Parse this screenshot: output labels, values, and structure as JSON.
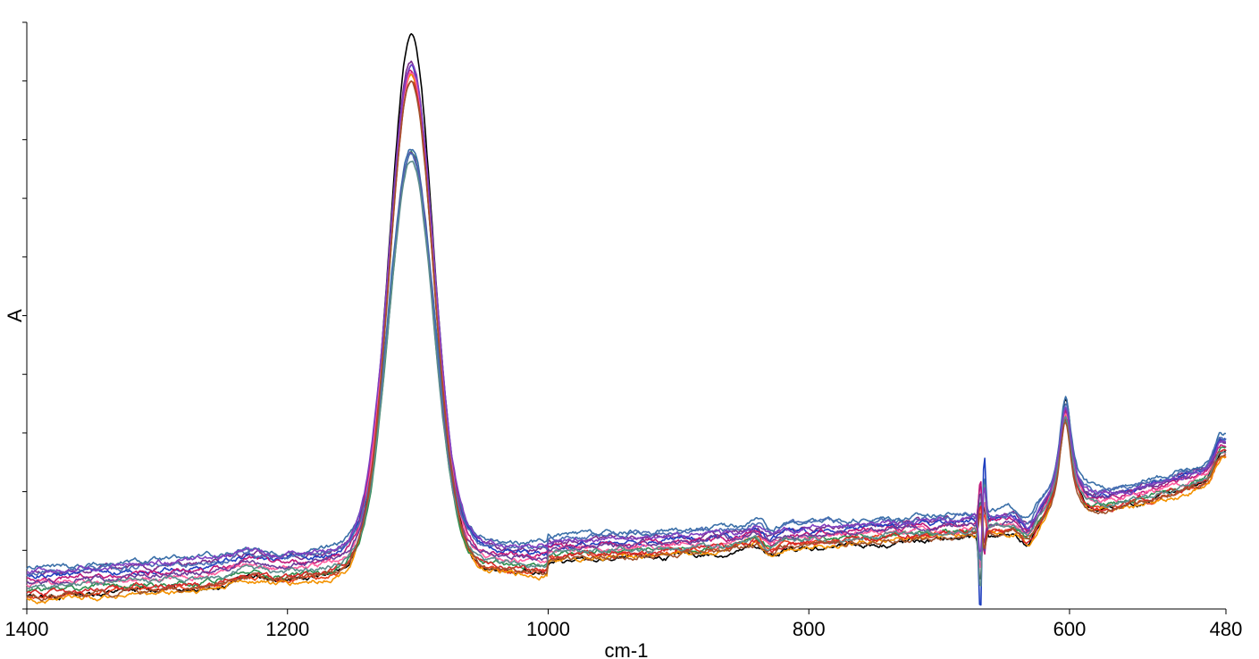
{
  "chart_data": {
    "type": "line",
    "title": "",
    "xlabel": "cm-1",
    "ylabel": "A",
    "x_reversed": true,
    "xlim": [
      1400,
      480
    ],
    "ylim": [
      0,
      1
    ],
    "x_tick_labels": [
      "1400",
      "1200",
      "1000",
      "800",
      "600",
      "480"
    ],
    "x_ticks": [
      1400,
      1200,
      1000,
      800,
      600,
      480
    ],
    "y_ticks_count": 10,
    "y_tick_labels_shown": false,
    "grid": false,
    "legend": "none",
    "series_count": 15,
    "series_colors": [
      "#000000",
      "#7b2d8e",
      "#e8401c",
      "#f39200",
      "#1f3fbf",
      "#2f8f4f",
      "#3a6fa8",
      "#c0187a",
      "#ff5fa0",
      "#6a3d9a",
      "#4c6fb5",
      "#d62728",
      "#5b8c8c",
      "#a0522d",
      "#8040c0"
    ],
    "series": [
      {
        "peak1105": 0.975,
        "peak600": 0.355,
        "peak470": 0.44,
        "base": 0.02,
        "mid": 0.075,
        "right": 0.22,
        "dip_amp": 0.1
      },
      {
        "peak1105": 0.93,
        "peak600": 0.335,
        "peak470": 0.42,
        "base": 0.06,
        "mid": 0.11,
        "right": 0.245,
        "dip_amp": 0.08
      },
      {
        "peak1105": 0.91,
        "peak600": 0.34,
        "peak470": 0.4,
        "base": 0.02,
        "mid": 0.085,
        "right": 0.215,
        "dip_amp": 0.06
      },
      {
        "peak1105": 0.905,
        "peak600": 0.33,
        "peak470": 0.41,
        "base": 0.015,
        "mid": 0.08,
        "right": 0.21,
        "dip_amp": 0.05
      },
      {
        "peak1105": 0.92,
        "peak600": 0.345,
        "peak470": 0.445,
        "base": 0.055,
        "mid": 0.105,
        "right": 0.24,
        "dip_amp": 0.2
      },
      {
        "peak1105": 0.77,
        "peak600": 0.32,
        "peak470": 0.43,
        "base": 0.03,
        "mid": 0.09,
        "right": 0.225,
        "dip_amp": 0.07
      },
      {
        "peak1105": 0.785,
        "peak600": 0.36,
        "peak470": 0.45,
        "base": 0.07,
        "mid": 0.12,
        "right": 0.25,
        "dip_amp": 0.12
      },
      {
        "peak1105": 0.915,
        "peak600": 0.335,
        "peak470": 0.42,
        "base": 0.05,
        "mid": 0.1,
        "right": 0.235,
        "dip_amp": 0.1
      },
      {
        "peak1105": 0.91,
        "peak600": 0.33,
        "peak470": 0.4,
        "base": 0.04,
        "mid": 0.095,
        "right": 0.23,
        "dip_amp": 0.09
      },
      {
        "peak1105": 0.775,
        "peak600": 0.34,
        "peak470": 0.435,
        "base": 0.045,
        "mid": 0.1,
        "right": 0.24,
        "dip_amp": 0.08
      },
      {
        "peak1105": 0.765,
        "peak600": 0.345,
        "peak470": 0.44,
        "base": 0.06,
        "mid": 0.115,
        "right": 0.245,
        "dip_amp": 0.1
      },
      {
        "peak1105": 0.905,
        "peak600": 0.325,
        "peak470": 0.405,
        "base": 0.025,
        "mid": 0.085,
        "right": 0.22,
        "dip_amp": 0.06
      },
      {
        "peak1105": 0.76,
        "peak600": 0.33,
        "peak470": 0.425,
        "base": 0.035,
        "mid": 0.09,
        "right": 0.225,
        "dip_amp": 0.14
      },
      {
        "peak1105": 0.9,
        "peak600": 0.32,
        "peak470": 0.4,
        "base": 0.02,
        "mid": 0.08,
        "right": 0.215,
        "dip_amp": 0.05
      },
      {
        "peak1105": 0.925,
        "peak600": 0.34,
        "peak470": 0.43,
        "base": 0.065,
        "mid": 0.11,
        "right": 0.24,
        "dip_amp": 0.09
      }
    ]
  }
}
